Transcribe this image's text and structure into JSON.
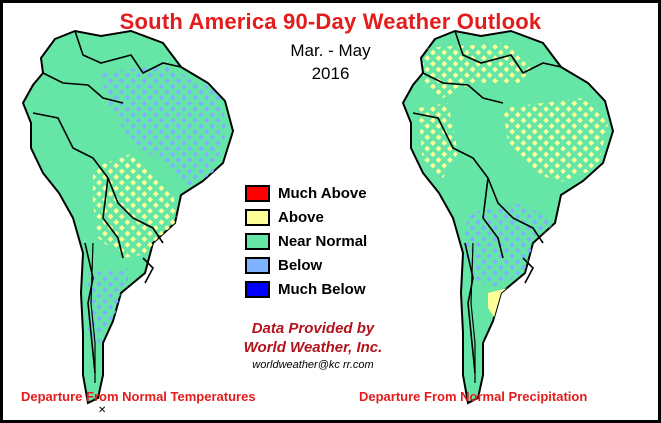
{
  "header": {
    "title": "South America 90-Day Weather Outlook",
    "period": "Mar. - May",
    "year": "2016"
  },
  "legend": {
    "items": [
      {
        "label": "Much Above",
        "color": "#ff0000"
      },
      {
        "label": "Above",
        "color": "#ffff99"
      },
      {
        "label": "Near Normal",
        "color": "#66e6a6"
      },
      {
        "label": "Below",
        "color": "#80b3ff"
      },
      {
        "label": "Much Below",
        "color": "#0000ff"
      }
    ]
  },
  "credit": {
    "line1": "Data Provided by",
    "line2": "World Weather, Inc.",
    "email": "worldweather@kc rr.com"
  },
  "maps": {
    "temperature": {
      "caption": "Departure From Normal Temperatures",
      "regions": [
        "below",
        "above"
      ]
    },
    "precipitation": {
      "caption": "Departure From Normal Precipitation",
      "regions": [
        "above",
        "below"
      ]
    }
  },
  "colors": {
    "land": "#66e6a6",
    "above_pattern": "#ffff99",
    "below_pattern": "#80b3ff",
    "border": "#000000",
    "title": "#e31c1c",
    "credit": "#b0141c"
  }
}
